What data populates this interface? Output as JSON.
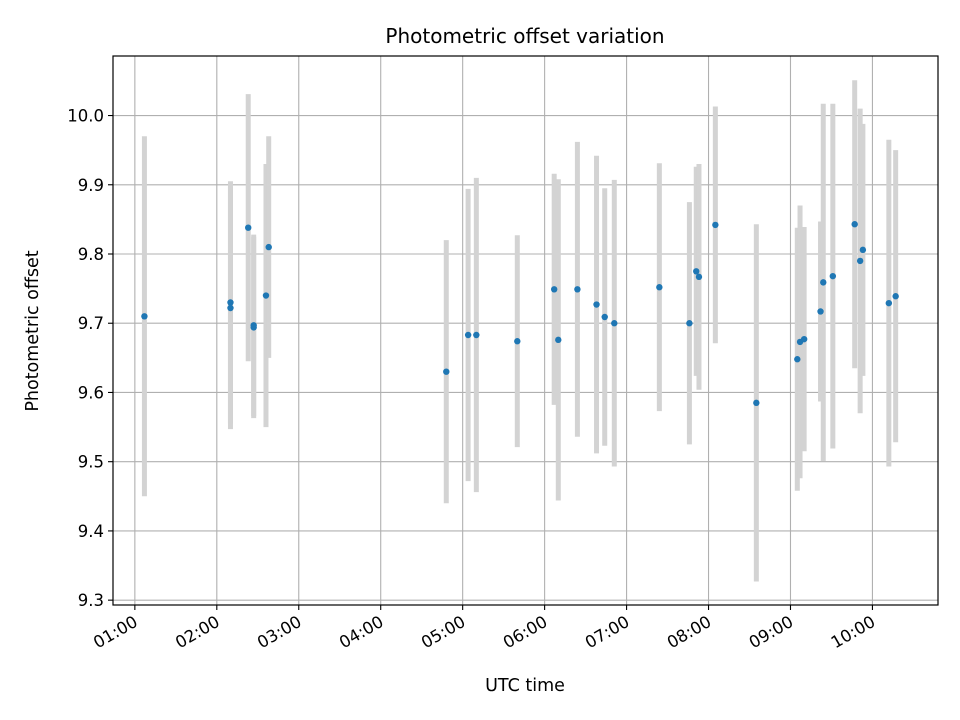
{
  "chart_data": {
    "type": "scatter",
    "title": "Photometric offset variation",
    "xlabel": "UTC time",
    "ylabel": "Photometric offset",
    "x_ticks": [
      "01:00",
      "02:00",
      "03:00",
      "04:00",
      "05:00",
      "06:00",
      "07:00",
      "08:00",
      "09:00",
      "10:00"
    ],
    "y_ticks": [
      "9.3",
      "9.4",
      "9.5",
      "9.6",
      "9.7",
      "9.8",
      "9.9",
      "10.0"
    ],
    "xlim": [
      "00:44",
      "10:48"
    ],
    "ylim": [
      9.293,
      10.086
    ],
    "grid": true,
    "point_color": "#1f77b4",
    "errorbar_color": "#d3d3d3",
    "points": [
      {
        "x": "01:07",
        "y": 9.71,
        "err": 0.26
      },
      {
        "x": "02:10",
        "y": 9.73,
        "err": 0.175
      },
      {
        "x": "02:10",
        "y": 9.722,
        "err": 0.175
      },
      {
        "x": "02:23",
        "y": 9.838,
        "err": 0.193
      },
      {
        "x": "02:27",
        "y": 9.697,
        "err": 0.131
      },
      {
        "x": "02:27",
        "y": 9.694,
        "err": 0.131
      },
      {
        "x": "02:36",
        "y": 9.74,
        "err": 0.19
      },
      {
        "x": "02:38",
        "y": 9.81,
        "err": 0.16
      },
      {
        "x": "04:48",
        "y": 9.63,
        "err": 0.19
      },
      {
        "x": "05:04",
        "y": 9.683,
        "err": 0.211
      },
      {
        "x": "05:10",
        "y": 9.683,
        "err": 0.227
      },
      {
        "x": "05:40",
        "y": 9.674,
        "err": 0.153
      },
      {
        "x": "06:07",
        "y": 9.749,
        "err": 0.167
      },
      {
        "x": "06:10",
        "y": 9.676,
        "err": 0.232
      },
      {
        "x": "06:24",
        "y": 9.749,
        "err": 0.213
      },
      {
        "x": "06:38",
        "y": 9.727,
        "err": 0.215
      },
      {
        "x": "06:44",
        "y": 9.709,
        "err": 0.186
      },
      {
        "x": "06:51",
        "y": 9.7,
        "err": 0.207
      },
      {
        "x": "07:24",
        "y": 9.752,
        "err": 0.179
      },
      {
        "x": "07:46",
        "y": 9.7,
        "err": 0.175
      },
      {
        "x": "07:51",
        "y": 9.775,
        "err": 0.151
      },
      {
        "x": "07:53",
        "y": 9.767,
        "err": 0.163
      },
      {
        "x": "08:05",
        "y": 9.842,
        "err": 0.171
      },
      {
        "x": "08:35",
        "y": 9.585,
        "err": 0.258
      },
      {
        "x": "09:05",
        "y": 9.648,
        "err": 0.19
      },
      {
        "x": "09:07",
        "y": 9.673,
        "err": 0.197
      },
      {
        "x": "09:10",
        "y": 9.677,
        "err": 0.162
      },
      {
        "x": "09:22",
        "y": 9.717,
        "err": 0.13
      },
      {
        "x": "09:24",
        "y": 9.759,
        "err": 0.258
      },
      {
        "x": "09:31",
        "y": 9.768,
        "err": 0.249
      },
      {
        "x": "09:47",
        "y": 9.843,
        "err": 0.208
      },
      {
        "x": "09:51",
        "y": 9.79,
        "err": 0.22
      },
      {
        "x": "09:53",
        "y": 9.806,
        "err": 0.182
      },
      {
        "x": "10:12",
        "y": 9.729,
        "err": 0.236
      },
      {
        "x": "10:17",
        "y": 9.739,
        "err": 0.211
      }
    ]
  }
}
